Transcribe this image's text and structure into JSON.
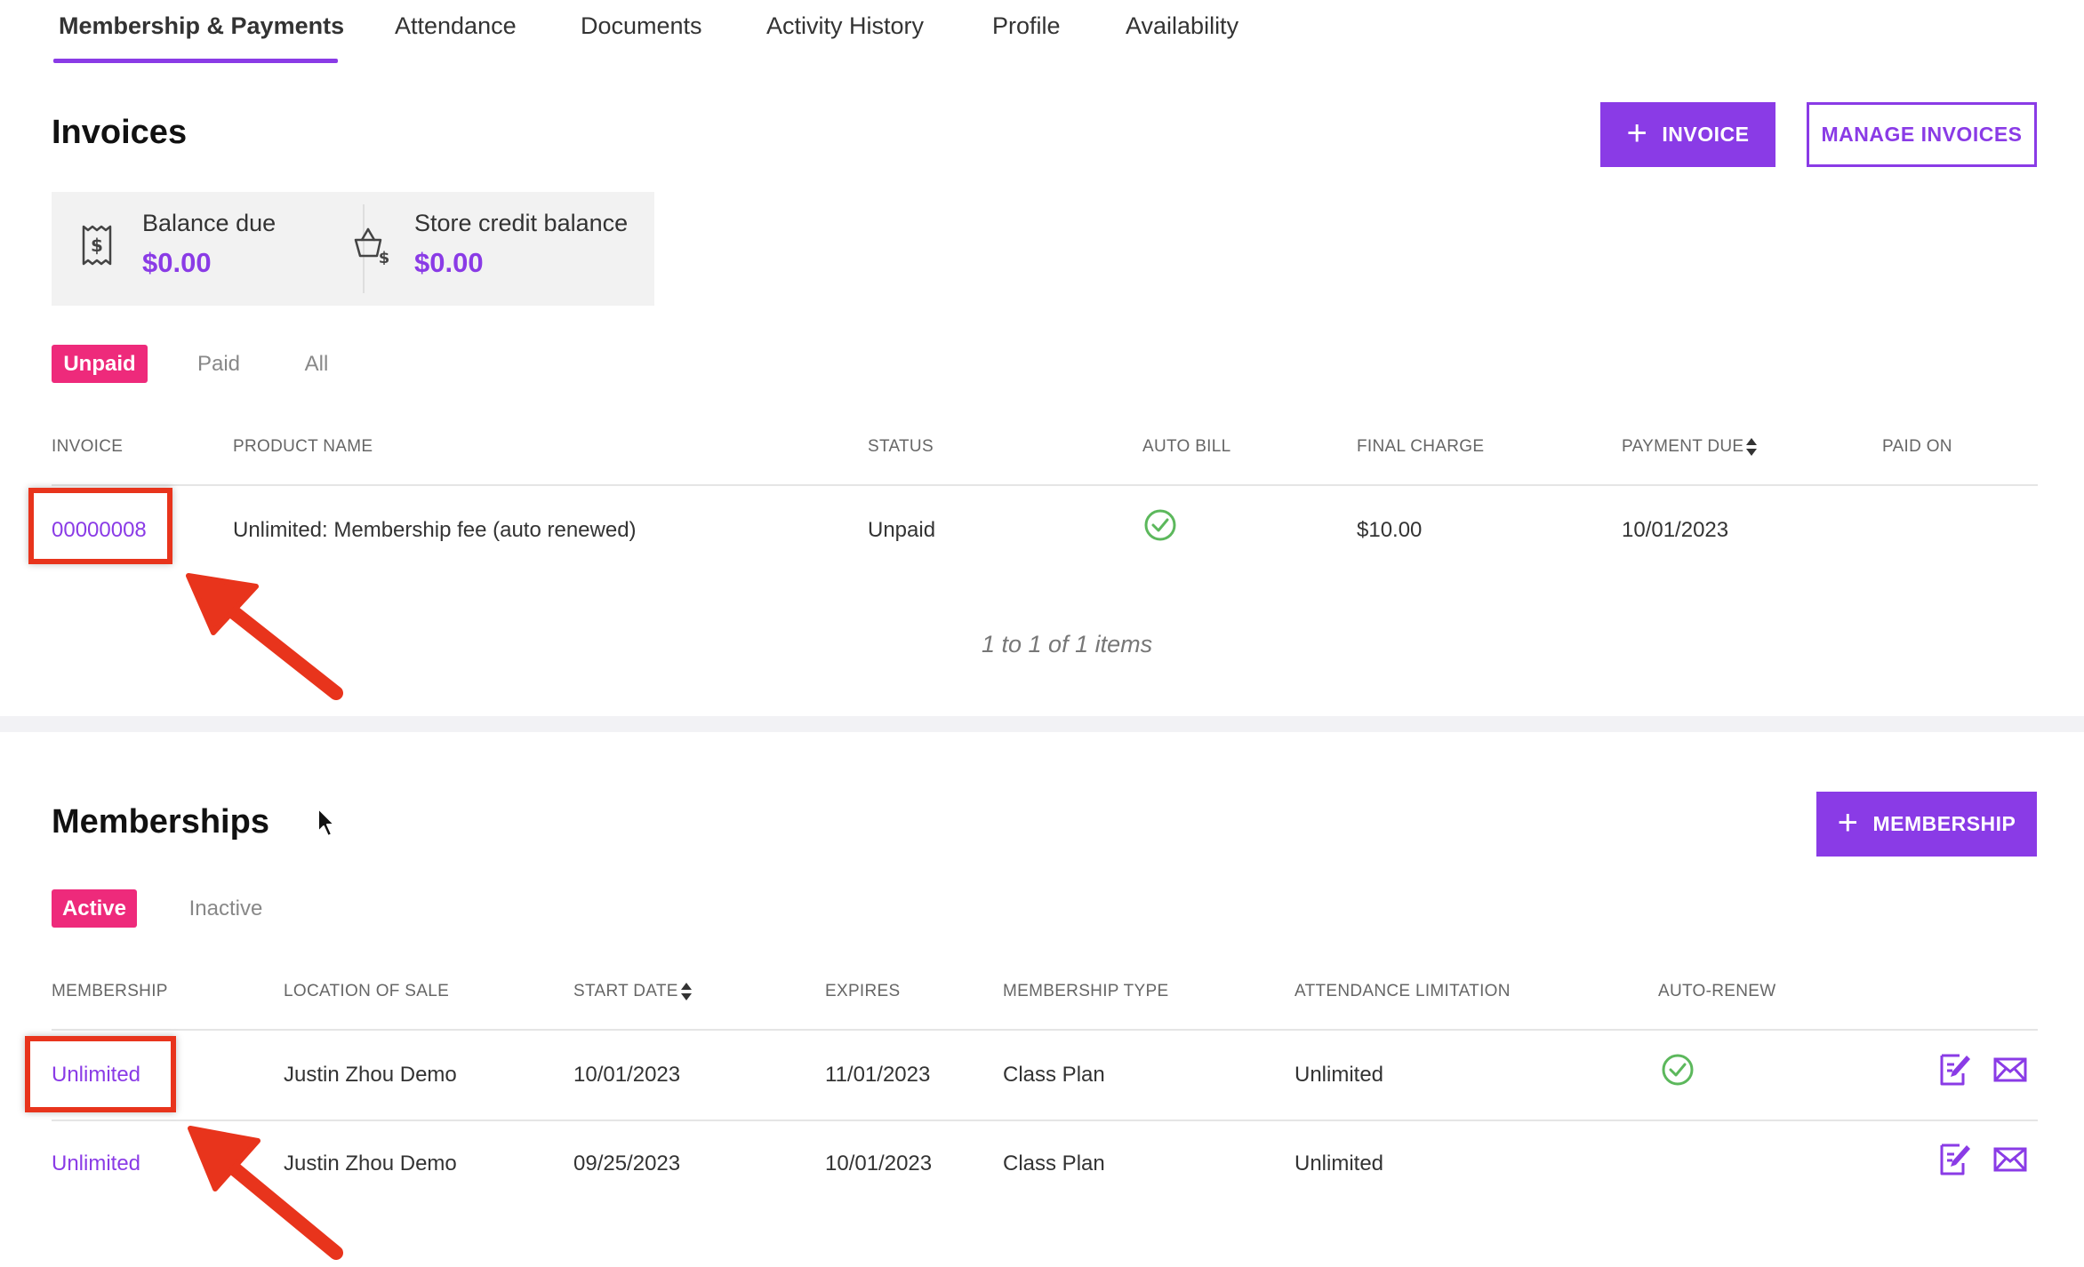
{
  "tabs": [
    {
      "label": "Membership & Payments",
      "active": true
    },
    {
      "label": "Attendance"
    },
    {
      "label": "Documents"
    },
    {
      "label": "Activity History"
    },
    {
      "label": "Profile"
    },
    {
      "label": "Availability"
    }
  ],
  "invoices": {
    "title": "Invoices",
    "add_button_label": "INVOICE",
    "manage_button_label": "MANAGE INVOICES",
    "balance_due_label": "Balance due",
    "balance_due_value": "$0.00",
    "store_credit_label": "Store credit balance",
    "store_credit_value": "$0.00",
    "filters": [
      "Unpaid",
      "Paid",
      "All"
    ],
    "active_filter": "Unpaid",
    "columns": [
      "INVOICE",
      "PRODUCT NAME",
      "STATUS",
      "AUTO BILL",
      "FINAL CHARGE",
      "PAYMENT DUE",
      "PAID ON"
    ],
    "rows": [
      {
        "invoice": "00000008",
        "product_name": "Unlimited: Membership fee (auto renewed)",
        "status": "Unpaid",
        "auto_bill": true,
        "final_charge": "$10.00",
        "payment_due": "10/01/2023",
        "paid_on": ""
      }
    ],
    "pagination": "1 to 1 of 1 items"
  },
  "memberships": {
    "title": "Memberships",
    "add_button_label": "MEMBERSHIP",
    "filters": [
      "Active",
      "Inactive"
    ],
    "active_filter": "Active",
    "columns": [
      "MEMBERSHIP",
      "LOCATION OF SALE",
      "START DATE",
      "EXPIRES",
      "MEMBERSHIP TYPE",
      "ATTENDANCE LIMITATION",
      "AUTO-RENEW"
    ],
    "rows": [
      {
        "membership": "Unlimited",
        "location": "Justin Zhou Demo",
        "start_date": "10/01/2023",
        "expires": "11/01/2023",
        "type": "Class Plan",
        "attendance_limitation": "Unlimited",
        "auto_renew": true
      },
      {
        "membership": "Unlimited",
        "location": "Justin Zhou Demo",
        "start_date": "09/25/2023",
        "expires": "10/01/2023",
        "type": "Class Plan",
        "attendance_limitation": "Unlimited",
        "auto_renew": false
      }
    ]
  },
  "icons": {
    "balance": "receipt-dollar-icon",
    "store_credit": "basket-dollar-icon",
    "check": "check-circle-icon",
    "edit": "edit-document-icon",
    "email": "envelope-icon",
    "sort": "sort-icon",
    "cursor": "mouse-cursor-icon"
  },
  "colors": {
    "accent": "#8a3be6",
    "pill_active": "#ee2a7b",
    "check": "#5cb85c",
    "annotation": "#e8341c"
  }
}
